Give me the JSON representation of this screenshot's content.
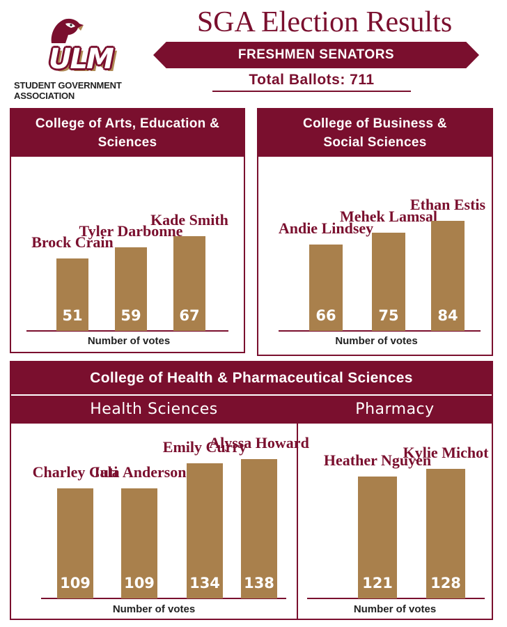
{
  "header": {
    "title": "SGA Election Results",
    "banner": "FRESHMEN SENATORS",
    "total_ballots": "Total Ballots: 711",
    "logo_text": "ULM",
    "logo_subtitle": "Student Government Association"
  },
  "colors": {
    "maroon": "#7a0f2e",
    "gold": "#a9804c"
  },
  "chart_data": [
    {
      "type": "bar",
      "title": "College of Arts, Education & Sciences",
      "categories": [
        "Brock Crain",
        "Tyler Darbonne",
        "Kade Smith"
      ],
      "values": [
        51,
        59,
        67
      ],
      "xlabel": "Number of votes"
    },
    {
      "type": "bar",
      "title": "College of Business & Social Sciences",
      "categories": [
        "Andie Lindsey",
        "Mehek Lamsal",
        "Ethan Estis"
      ],
      "values": [
        66,
        75,
        84
      ],
      "xlabel": "Number of votes"
    },
    {
      "type": "bar",
      "title": "College of Health & Pharmaceutical Sciences",
      "subtitle": "Health Sciences",
      "categories": [
        "Charley Cuti",
        "Jala Anderson",
        "Emily Curry",
        "Alyssa Howard"
      ],
      "values": [
        109,
        109,
        134,
        138
      ],
      "xlabel": "Number of votes"
    },
    {
      "type": "bar",
      "title": "College of Health & Pharmaceutical Sciences",
      "subtitle": "Pharmacy",
      "categories": [
        "Heather Nguyen",
        "Kylie Michot"
      ],
      "values": [
        121,
        128
      ],
      "xlabel": "Number of votes"
    }
  ]
}
